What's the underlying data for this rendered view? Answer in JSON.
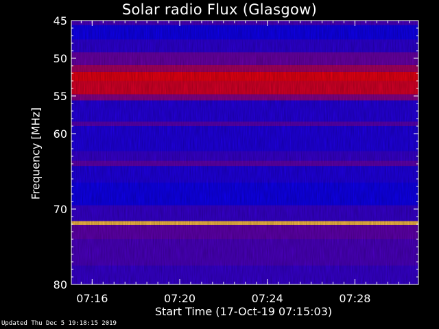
{
  "chart_data": {
    "type": "heatmap",
    "title": "Solar radio Flux (Glasgow)",
    "xlabel": "Start Time (17-Oct-19 07:15:03)",
    "ylabel": "Frequency [MHz]",
    "footer": "Updated Thu Dec  5 19:18:15 2019",
    "x_range_minutes": [
      15.05,
      30.9
    ],
    "x_ticks": [
      {
        "minute": 16,
        "label": "07:16"
      },
      {
        "minute": 20,
        "label": "07:20"
      },
      {
        "minute": 24,
        "label": "07:24"
      },
      {
        "minute": 28,
        "label": "07:28"
      }
    ],
    "y_range": [
      45,
      80
    ],
    "y_ticks": [
      45,
      50,
      55,
      60,
      70,
      80
    ],
    "bands": [
      {
        "from": 45.0,
        "to": 45.6,
        "level": 0.25
      },
      {
        "from": 45.6,
        "to": 47.5,
        "level": 0.05
      },
      {
        "from": 47.5,
        "to": 49.2,
        "level": 0.15
      },
      {
        "from": 49.2,
        "to": 50.9,
        "level": 0.35
      },
      {
        "from": 50.9,
        "to": 51.8,
        "level": 0.55
      },
      {
        "from": 51.8,
        "to": 53.0,
        "level": 0.75
      },
      {
        "from": 53.0,
        "to": 54.8,
        "level": 0.7
      },
      {
        "from": 54.8,
        "to": 55.6,
        "level": 0.45
      },
      {
        "from": 55.6,
        "to": 58.4,
        "level": 0.12
      },
      {
        "from": 58.4,
        "to": 59.0,
        "level": 0.3
      },
      {
        "from": 59.0,
        "to": 62.3,
        "level": 0.1
      },
      {
        "from": 62.3,
        "to": 63.6,
        "level": 0.18
      },
      {
        "from": 63.6,
        "to": 64.3,
        "level": 0.32
      },
      {
        "from": 64.3,
        "to": 66.5,
        "level": 0.1
      },
      {
        "from": 66.5,
        "to": 69.5,
        "level": 0.05
      },
      {
        "from": 69.5,
        "to": 71.6,
        "level": 0.18
      },
      {
        "from": 71.6,
        "to": 72.1,
        "level": 0.95
      },
      {
        "from": 72.1,
        "to": 74.0,
        "level": 0.32
      },
      {
        "from": 74.0,
        "to": 77.5,
        "level": 0.25
      },
      {
        "from": 77.5,
        "to": 80.0,
        "level": 0.18
      }
    ],
    "colors": {
      "background": "#000000",
      "low": "#0000ff",
      "mid": "#7a00a0",
      "high": "#ff0000",
      "peak": "#ffff60"
    }
  }
}
